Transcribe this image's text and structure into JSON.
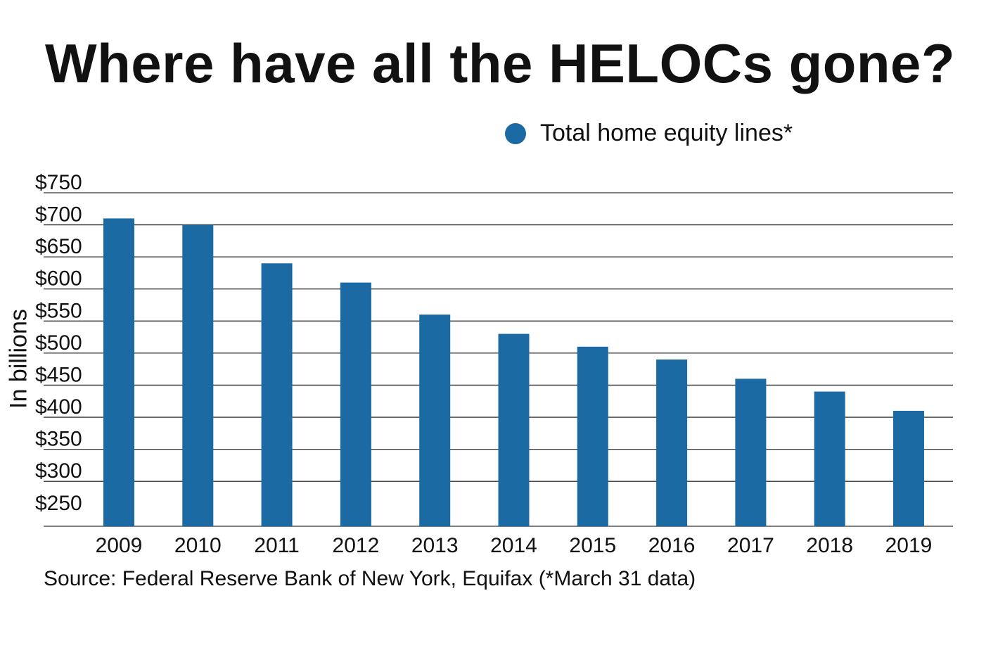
{
  "title": "Where have all the HELOCs gone?",
  "legend": {
    "label": "Total home equity lines*"
  },
  "source": "Source: Federal Reserve Bank of New York, Equifax (*March 31 data)",
  "colors": {
    "bar": "#1b6aa3",
    "grid": "#333333",
    "text": "#111111"
  },
  "chart_data": {
    "type": "bar",
    "title": "Where have all the HELOCs gone?",
    "xlabel": "",
    "ylabel": "In billions",
    "categories": [
      "2009",
      "2010",
      "2011",
      "2012",
      "2013",
      "2014",
      "2015",
      "2016",
      "2017",
      "2018",
      "2019"
    ],
    "series": [
      {
        "name": "Total home equity lines*",
        "values": [
          710,
          700,
          640,
          610,
          560,
          530,
          510,
          490,
          460,
          440,
          410
        ]
      }
    ],
    "ylim": [
      230,
      750
    ],
    "yticks": [
      250,
      300,
      350,
      400,
      450,
      500,
      550,
      600,
      650,
      700,
      750
    ],
    "ytick_labels": [
      "$250",
      "$300",
      "$350",
      "$400",
      "$450",
      "$500",
      "$550",
      "$600",
      "$650",
      "$700",
      "$750"
    ],
    "grid": true,
    "legend_position": "top-right"
  }
}
